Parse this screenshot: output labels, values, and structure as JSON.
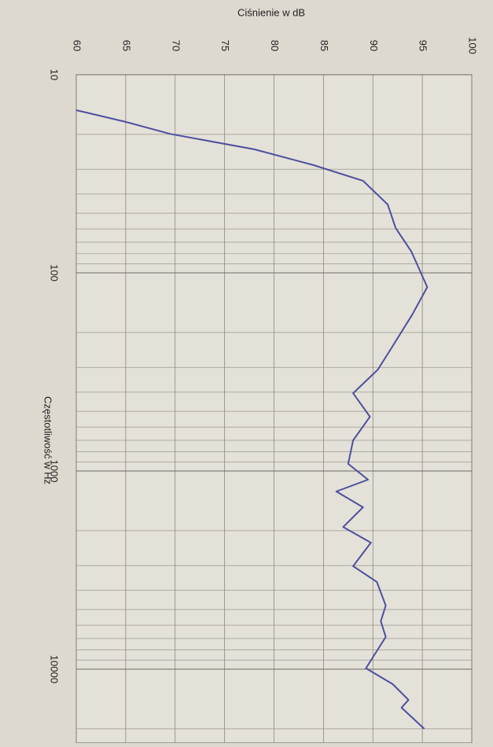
{
  "chart_data": {
    "type": "line",
    "ylabel": "Ciśnienie w dB",
    "xlabel": "Częstotliwość w Hz",
    "xscale": "log",
    "xlim": [
      10,
      23600
    ],
    "xticks": [
      10,
      100,
      1000,
      10000
    ],
    "ylim": [
      60,
      100
    ],
    "yticks": [
      60,
      65,
      70,
      75,
      80,
      85,
      90,
      95,
      100
    ],
    "grid": true,
    "x": [
      15.1,
      17.3,
      19.9,
      23.8,
      28.6,
      34.3,
      45.2,
      59.4,
      78.2,
      118,
      162,
      234,
      308,
      405,
      532,
      700,
      920,
      1106,
      1268,
      1524,
      1916,
      2298,
      3020,
      3630,
      4775,
      5730,
      6876,
      9900,
      11890,
      14290,
      15640,
      20000
    ],
    "series": [
      {
        "name": "Ciśnienie",
        "color": "#4d4f9e",
        "values": [
          60,
          65,
          69.5,
          78,
          84,
          89,
          91.5,
          92.3,
          93.9,
          95.5,
          94,
          92,
          90.5,
          88,
          89.7,
          88,
          87.5,
          89.5,
          86.3,
          89,
          87,
          89.8,
          88,
          90.4,
          91.3,
          90.8,
          91.3,
          89.3,
          92,
          93.6,
          92.9,
          95.2
        ]
      }
    ]
  }
}
